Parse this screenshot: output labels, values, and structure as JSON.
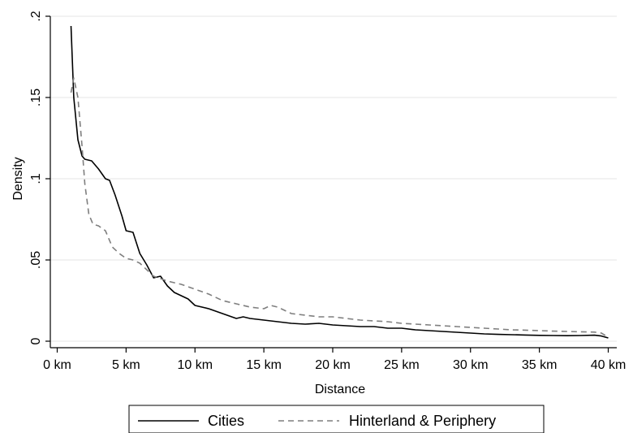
{
  "chart_data": {
    "type": "line",
    "xlabel": "Distance",
    "ylabel": "Density",
    "xlim": [
      0,
      41
    ],
    "ylim": [
      0,
      0.2
    ],
    "grid": "horizontal",
    "legend_position": "bottom",
    "x_ticks": [
      {
        "value": 0,
        "label": "0 km"
      },
      {
        "value": 5,
        "label": "5 km"
      },
      {
        "value": 10,
        "label": "10 km"
      },
      {
        "value": 15,
        "label": "15 km"
      },
      {
        "value": 20,
        "label": "20 km"
      },
      {
        "value": 25,
        "label": "25 km"
      },
      {
        "value": 30,
        "label": "30 km"
      },
      {
        "value": 35,
        "label": "35 km"
      },
      {
        "value": 40,
        "label": "40 km"
      }
    ],
    "y_ticks": [
      {
        "value": 0,
        "label": "0"
      },
      {
        "value": 0.05,
        "label": ".05"
      },
      {
        "value": 0.1,
        "label": ".1"
      },
      {
        "value": 0.15,
        "label": ".15"
      },
      {
        "value": 0.2,
        "label": ".2"
      }
    ],
    "series": [
      {
        "name": "Cities",
        "color": "#000000",
        "dash": "solid",
        "x": [
          1.0,
          1.2,
          1.5,
          1.8,
          2.0,
          2.5,
          3.0,
          3.5,
          3.8,
          4.2,
          4.7,
          5.0,
          5.5,
          6.0,
          6.5,
          7.0,
          7.5,
          8.0,
          8.5,
          9.0,
          9.5,
          10.0,
          11.0,
          12.0,
          13.0,
          13.5,
          14.0,
          15.0,
          16.0,
          17.0,
          18.0,
          19.0,
          20.0,
          21.0,
          22.0,
          23.0,
          24.0,
          25.0,
          26.0,
          27.0,
          28.0,
          29.0,
          30.0,
          31.0,
          32.0,
          33.0,
          34.0,
          35.0,
          36.0,
          37.0,
          38.0,
          39.0,
          39.5,
          40.0
        ],
        "y": [
          0.194,
          0.15,
          0.124,
          0.114,
          0.112,
          0.111,
          0.106,
          0.1,
          0.099,
          0.09,
          0.077,
          0.068,
          0.067,
          0.054,
          0.047,
          0.039,
          0.04,
          0.034,
          0.03,
          0.028,
          0.026,
          0.022,
          0.02,
          0.017,
          0.014,
          0.015,
          0.014,
          0.013,
          0.012,
          0.011,
          0.0105,
          0.011,
          0.01,
          0.0095,
          0.009,
          0.009,
          0.008,
          0.008,
          0.007,
          0.0065,
          0.006,
          0.0055,
          0.005,
          0.0045,
          0.0042,
          0.004,
          0.0038,
          0.0036,
          0.0035,
          0.0034,
          0.0035,
          0.0037,
          0.0032,
          0.002
        ]
      },
      {
        "name": "Hinterland & Periphery",
        "color": "#7f7f7f",
        "dash": "dashed",
        "x": [
          1.0,
          1.2,
          1.5,
          1.8,
          2.0,
          2.3,
          2.6,
          3.0,
          3.5,
          4.0,
          4.5,
          5.0,
          5.5,
          6.0,
          6.5,
          7.0,
          8.0,
          9.0,
          10.0,
          11.0,
          12.0,
          13.0,
          14.0,
          15.0,
          15.5,
          16.0,
          17.0,
          18.0,
          19.0,
          20.0,
          21.0,
          22.0,
          23.0,
          24.0,
          25.0,
          26.0,
          27.0,
          28.0,
          29.0,
          30.0,
          31.0,
          32.0,
          33.0,
          34.0,
          35.0,
          36.0,
          37.0,
          38.0,
          39.0,
          39.5,
          40.0
        ],
        "y": [
          0.153,
          0.162,
          0.15,
          0.12,
          0.097,
          0.078,
          0.072,
          0.071,
          0.068,
          0.058,
          0.054,
          0.051,
          0.05,
          0.048,
          0.044,
          0.04,
          0.037,
          0.035,
          0.032,
          0.029,
          0.025,
          0.023,
          0.021,
          0.02,
          0.022,
          0.021,
          0.017,
          0.016,
          0.015,
          0.015,
          0.014,
          0.013,
          0.0125,
          0.012,
          0.011,
          0.0105,
          0.01,
          0.0095,
          0.009,
          0.0085,
          0.008,
          0.0075,
          0.007,
          0.0068,
          0.0065,
          0.0062,
          0.006,
          0.0058,
          0.0056,
          0.005,
          0.0025
        ]
      }
    ]
  }
}
